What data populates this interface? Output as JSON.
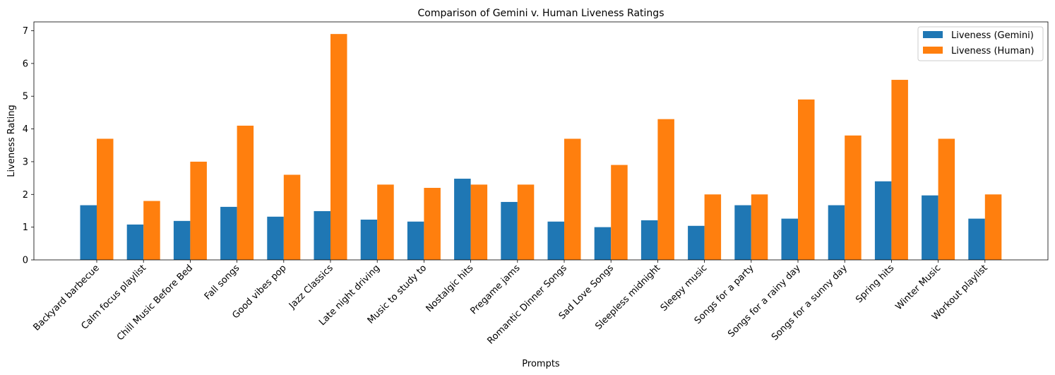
{
  "chart_data": {
    "type": "bar",
    "title": "Comparison of Gemini v. Human Liveness Ratings",
    "xlabel": "Prompts",
    "ylabel": "Liveness Rating",
    "ylim": [
      0,
      7.27
    ],
    "yticks": [
      0,
      1,
      2,
      3,
      4,
      5,
      6,
      7
    ],
    "grid": false,
    "legend_position": "top-right",
    "categories": [
      "Backyard barbecue",
      "Calm focus playlist",
      "Chill Music Before Bed",
      "Fall songs",
      "Good vibes pop",
      "Jazz Classics",
      "Late night driving",
      "Music to study to",
      "Nostalgic hits",
      "Pregame jams",
      "Romantic Dinner Songs",
      "Sad Love Songs",
      "Sleepless midnight",
      "Sleepy music",
      "Songs for a party",
      "Songs for a rainy day",
      "Songs for a sunny day",
      "Spring hits",
      "Winter Music",
      "Workout playlist"
    ],
    "series": [
      {
        "name": "Liveness (Gemini)",
        "color": "#1f77b4",
        "values": [
          1.67,
          1.08,
          1.19,
          1.62,
          1.32,
          1.49,
          1.23,
          1.17,
          2.48,
          1.77,
          1.17,
          1.0,
          1.21,
          1.04,
          1.67,
          1.26,
          1.67,
          2.4,
          1.97,
          1.26
        ]
      },
      {
        "name": "Liveness (Human)",
        "color": "#ff7f0e",
        "values": [
          3.7,
          1.8,
          3.0,
          4.1,
          2.6,
          6.9,
          2.3,
          2.2,
          2.3,
          2.3,
          3.7,
          2.9,
          4.3,
          2.0,
          2.0,
          4.9,
          3.8,
          5.5,
          3.7,
          2.0
        ]
      }
    ]
  }
}
